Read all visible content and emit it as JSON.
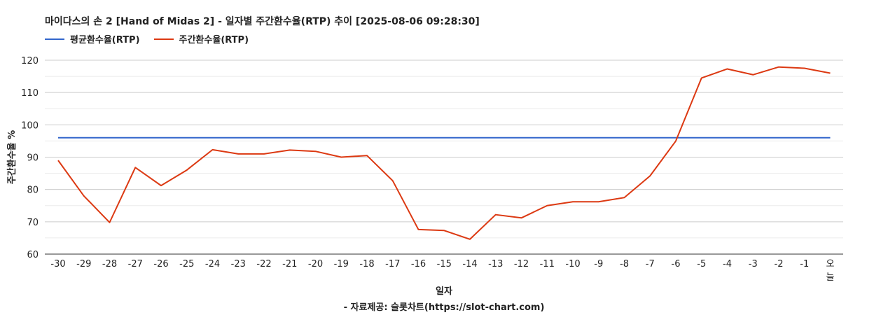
{
  "chart_data": {
    "type": "line",
    "title": "마이다스의 손 2 [Hand of Midas 2] - 일자별 주간환수율(RTP) 추이 [2025-08-06 09:28:30]",
    "xlabel": "일자",
    "ylabel": "주간환수율 %",
    "footer": "- 자료제공: 슬롯차트(https://slot-chart.com)",
    "categories": [
      "-30",
      "-29",
      "-28",
      "-27",
      "-26",
      "-25",
      "-24",
      "-23",
      "-22",
      "-21",
      "-20",
      "-19",
      "-18",
      "-17",
      "-16",
      "-15",
      "-14",
      "-13",
      "-12",
      "-11",
      "-10",
      "-9",
      "-8",
      "-7",
      "-6",
      "-5",
      "-4",
      "-3",
      "-2",
      "-1",
      "오늘"
    ],
    "yticks": [
      "60",
      "70",
      "80",
      "90",
      "100",
      "110",
      "120"
    ],
    "ylim": [
      60,
      120
    ],
    "grid": true,
    "legend_position": "top-left",
    "series": [
      {
        "name": "평균환수율(RTP)",
        "color": "#3366cc",
        "values": [
          96,
          96,
          96,
          96,
          96,
          96,
          96,
          96,
          96,
          96,
          96,
          96,
          96,
          96,
          96,
          96,
          96,
          96,
          96,
          96,
          96,
          96,
          96,
          96,
          96,
          96,
          96,
          96,
          96,
          96,
          96
        ]
      },
      {
        "name": "주간환수율(RTP)",
        "color": "#dc3912",
        "values": [
          89,
          78,
          69.8,
          86.8,
          81.2,
          86,
          92.3,
          91,
          91,
          92.2,
          91.8,
          90,
          90.5,
          82.7,
          67.6,
          67.3,
          64.6,
          72.2,
          71.2,
          75,
          76.2,
          76.2,
          77.5,
          84.2,
          95,
          114.5,
          117.3,
          115.5,
          117.9,
          117.5,
          116
        ]
      }
    ]
  }
}
